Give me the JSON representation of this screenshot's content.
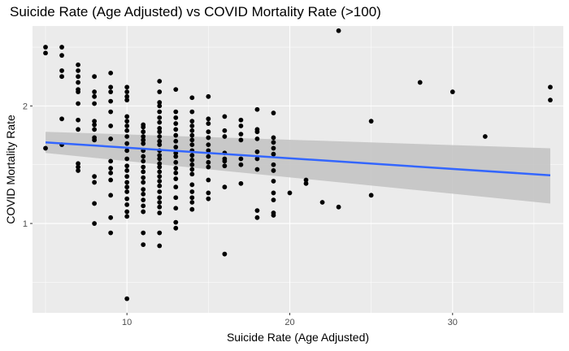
{
  "chart_data": {
    "type": "scatter",
    "title": "Suicide Rate (Age Adjusted) vs COVID Mortality Rate (>100)",
    "xlabel": "Suicide Rate (Age Adjusted)",
    "ylabel": "COVID Mortality Rate",
    "xlim": [
      4.2,
      36.8
    ],
    "ylim": [
      0.24,
      2.68
    ],
    "x_ticks": [
      10,
      20,
      30
    ],
    "y_ticks": [
      1,
      2
    ],
    "x_tick_labels": [
      "10",
      "20",
      "30"
    ],
    "y_tick_labels": [
      "1",
      "2"
    ],
    "grid": true,
    "legend": "none",
    "colors": {
      "panel_bg": "#ebebeb",
      "grid_major": "#ffffff",
      "point": "#000000",
      "trend_line": "#3366ff",
      "confidence_band": "#c4c4c4",
      "tick_label": "#4d4d4d"
    },
    "trend": {
      "method": "linear",
      "x": [
        5,
        36
      ],
      "y": [
        1.69,
        1.41
      ],
      "ci_lower": [
        1.6,
        1.17
      ],
      "ci_upper": [
        1.78,
        1.64
      ]
    },
    "points": [
      [
        5,
        2.5
      ],
      [
        5,
        2.45
      ],
      [
        5,
        1.64
      ],
      [
        6,
        2.5
      ],
      [
        6,
        2.43
      ],
      [
        6,
        2.3
      ],
      [
        6,
        2.25
      ],
      [
        6,
        1.89
      ],
      [
        6,
        1.67
      ],
      [
        7,
        2.35
      ],
      [
        7,
        2.3
      ],
      [
        7,
        2.25
      ],
      [
        7,
        2.2
      ],
      [
        7,
        2.14
      ],
      [
        7,
        2.12
      ],
      [
        7,
        2.02
      ],
      [
        7,
        1.88
      ],
      [
        7,
        1.8
      ],
      [
        7,
        1.51
      ],
      [
        7,
        1.48
      ],
      [
        7,
        1.45
      ],
      [
        8,
        2.25
      ],
      [
        8,
        2.12
      ],
      [
        8,
        2.08
      ],
      [
        8,
        2.02
      ],
      [
        8,
        1.87
      ],
      [
        8,
        1.84
      ],
      [
        8,
        1.8
      ],
      [
        8,
        1.73
      ],
      [
        8,
        1.71
      ],
      [
        8,
        1.4
      ],
      [
        8,
        1.35
      ],
      [
        8,
        1.17
      ],
      [
        8,
        1.0
      ],
      [
        9,
        2.28
      ],
      [
        9,
        2.16
      ],
      [
        9,
        2.12
      ],
      [
        9,
        2.04
      ],
      [
        9,
        1.95
      ],
      [
        9,
        1.83
      ],
      [
        9,
        1.72
      ],
      [
        9,
        1.53
      ],
      [
        9,
        1.47
      ],
      [
        9,
        1.43
      ],
      [
        9,
        1.37
      ],
      [
        9,
        1.24
      ],
      [
        9,
        1.05
      ],
      [
        9,
        0.92
      ],
      [
        10,
        2.16
      ],
      [
        10,
        2.12
      ],
      [
        10,
        2.08
      ],
      [
        10,
        2.05
      ],
      [
        10,
        1.91
      ],
      [
        10,
        1.87
      ],
      [
        10,
        1.83
      ],
      [
        10,
        1.79
      ],
      [
        10,
        1.74
      ],
      [
        10,
        1.68
      ],
      [
        10,
        1.62
      ],
      [
        10,
        1.55
      ],
      [
        10,
        1.49
      ],
      [
        10,
        1.45
      ],
      [
        10,
        1.4
      ],
      [
        10,
        1.35
      ],
      [
        10,
        1.31
      ],
      [
        10,
        1.27
      ],
      [
        10,
        1.21
      ],
      [
        10,
        1.16
      ],
      [
        10,
        1.1
      ],
      [
        10,
        1.06
      ],
      [
        10,
        0.36
      ],
      [
        11,
        1.84
      ],
      [
        11,
        1.82
      ],
      [
        11,
        1.78
      ],
      [
        11,
        1.74
      ],
      [
        11,
        1.71
      ],
      [
        11,
        1.68
      ],
      [
        11,
        1.62
      ],
      [
        11,
        1.57
      ],
      [
        11,
        1.53
      ],
      [
        11,
        1.48
      ],
      [
        11,
        1.44
      ],
      [
        11,
        1.39
      ],
      [
        11,
        1.35
      ],
      [
        11,
        1.29
      ],
      [
        11,
        1.25
      ],
      [
        11,
        1.2
      ],
      [
        11,
        1.15
      ],
      [
        11,
        1.1
      ],
      [
        11,
        0.92
      ],
      [
        11,
        0.82
      ],
      [
        12,
        2.21
      ],
      [
        12,
        2.12
      ],
      [
        12,
        2.03
      ],
      [
        12,
        2.0
      ],
      [
        12,
        1.95
      ],
      [
        12,
        1.9
      ],
      [
        12,
        1.86
      ],
      [
        12,
        1.81
      ],
      [
        12,
        1.78
      ],
      [
        12,
        1.74
      ],
      [
        12,
        1.7
      ],
      [
        12,
        1.67
      ],
      [
        12,
        1.62
      ],
      [
        12,
        1.58
      ],
      [
        12,
        1.55
      ],
      [
        12,
        1.51
      ],
      [
        12,
        1.48
      ],
      [
        12,
        1.44
      ],
      [
        12,
        1.4
      ],
      [
        12,
        1.36
      ],
      [
        12,
        1.32
      ],
      [
        12,
        1.27
      ],
      [
        12,
        1.22
      ],
      [
        12,
        1.18
      ],
      [
        12,
        1.14
      ],
      [
        12,
        1.09
      ],
      [
        12,
        0.92
      ],
      [
        12,
        0.81
      ],
      [
        13,
        2.14
      ],
      [
        13,
        1.95
      ],
      [
        13,
        1.9
      ],
      [
        13,
        1.85
      ],
      [
        13,
        1.8
      ],
      [
        13,
        1.75
      ],
      [
        13,
        1.7
      ],
      [
        13,
        1.65
      ],
      [
        13,
        1.6
      ],
      [
        13,
        1.57
      ],
      [
        13,
        1.52
      ],
      [
        13,
        1.47
      ],
      [
        13,
        1.43
      ],
      [
        13,
        1.38
      ],
      [
        13,
        1.31
      ],
      [
        13,
        1.22
      ],
      [
        13,
        1.13
      ],
      [
        13,
        1.01
      ],
      [
        13,
        0.96
      ],
      [
        14,
        2.07
      ],
      [
        14,
        1.95
      ],
      [
        14,
        1.87
      ],
      [
        14,
        1.83
      ],
      [
        14,
        1.79
      ],
      [
        14,
        1.75
      ],
      [
        14,
        1.71
      ],
      [
        14,
        1.67
      ],
      [
        14,
        1.62
      ],
      [
        14,
        1.58
      ],
      [
        14,
        1.54
      ],
      [
        14,
        1.5
      ],
      [
        14,
        1.46
      ],
      [
        14,
        1.42
      ],
      [
        14,
        1.33
      ],
      [
        14,
        1.27
      ],
      [
        14,
        1.22
      ],
      [
        14,
        1.18
      ],
      [
        14,
        1.12
      ],
      [
        15,
        2.08
      ],
      [
        15,
        1.89
      ],
      [
        15,
        1.85
      ],
      [
        15,
        1.78
      ],
      [
        15,
        1.73
      ],
      [
        15,
        1.67
      ],
      [
        15,
        1.62
      ],
      [
        15,
        1.57
      ],
      [
        15,
        1.52
      ],
      [
        15,
        1.48
      ],
      [
        15,
        1.37
      ],
      [
        15,
        1.26
      ],
      [
        15,
        1.21
      ],
      [
        16,
        1.91
      ],
      [
        16,
        1.79
      ],
      [
        16,
        1.74
      ],
      [
        16,
        1.6
      ],
      [
        16,
        1.55
      ],
      [
        16,
        1.53
      ],
      [
        16,
        1.49
      ],
      [
        16,
        1.31
      ],
      [
        16,
        0.74
      ],
      [
        17,
        1.88
      ],
      [
        17,
        1.83
      ],
      [
        17,
        1.76
      ],
      [
        17,
        1.71
      ],
      [
        17,
        1.55
      ],
      [
        17,
        1.5
      ],
      [
        17,
        1.34
      ],
      [
        18,
        1.97
      ],
      [
        18,
        1.8
      ],
      [
        18,
        1.78
      ],
      [
        18,
        1.72
      ],
      [
        18,
        1.61
      ],
      [
        18,
        1.55
      ],
      [
        18,
        1.46
      ],
      [
        18,
        1.11
      ],
      [
        18,
        1.05
      ],
      [
        19,
        1.94
      ],
      [
        19,
        1.73
      ],
      [
        19,
        1.69
      ],
      [
        19,
        1.64
      ],
      [
        19,
        1.59
      ],
      [
        19,
        1.5
      ],
      [
        19,
        1.45
      ],
      [
        19,
        1.36
      ],
      [
        19,
        1.26
      ],
      [
        19,
        1.2
      ],
      [
        19,
        1.09
      ],
      [
        19,
        1.07
      ],
      [
        20,
        1.26
      ],
      [
        21,
        1.37
      ],
      [
        21,
        1.34
      ],
      [
        22,
        1.18
      ],
      [
        23,
        2.64
      ],
      [
        23,
        1.14
      ],
      [
        25,
        1.87
      ],
      [
        25,
        1.24
      ],
      [
        28,
        2.2
      ],
      [
        30,
        2.12
      ],
      [
        32,
        1.74
      ],
      [
        36,
        2.16
      ],
      [
        36,
        2.05
      ]
    ]
  }
}
